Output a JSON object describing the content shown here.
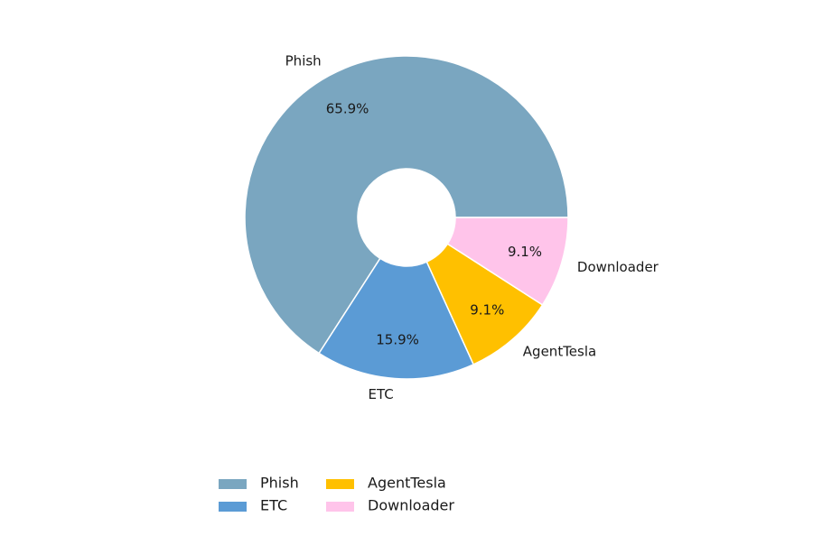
{
  "chart_data": {
    "type": "pie",
    "donut": true,
    "title": "",
    "start_angle_deg": 0,
    "direction": "counterclockwise",
    "slices": [
      {
        "label": "Phish",
        "value": 65.9,
        "pct_label": "65.9%",
        "color": "#7aa6c0"
      },
      {
        "label": "ETC",
        "value": 15.9,
        "pct_label": "15.9%",
        "color": "#5b9bd5"
      },
      {
        "label": "AgentTesla",
        "value": 9.1,
        "pct_label": "9.1%",
        "color": "#ffc000"
      },
      {
        "label": "Downloader",
        "value": 9.1,
        "pct_label": "9.1%",
        "color": "#ffc4ea"
      }
    ],
    "legend": {
      "placement": "bottom",
      "columns": 3,
      "entries": [
        "Phish",
        "ETC",
        "AgentTesla",
        "Downloader"
      ]
    },
    "edge_color": "#ffffff"
  }
}
